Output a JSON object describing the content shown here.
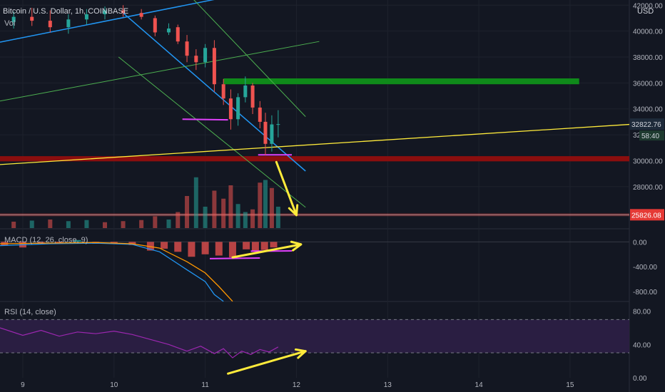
{
  "header": {
    "symbol": "Bitcoin / U.S. Dollar, 1h, COINBASE",
    "currency": "USD",
    "vol_label": "Vol"
  },
  "indicators": {
    "macd_label": "MACD (12, 26, close, 9)",
    "rsi_label": "RSI (14, close)"
  },
  "price_axis": {
    "ticks": [
      "42000.00",
      "40000.00",
      "38000.00",
      "36000.00",
      "34000.00",
      "32000.00",
      "30000.00",
      "28000.00"
    ],
    "current_price": "32822.76",
    "countdown": "58:40",
    "marker_price": "25826.08"
  },
  "macd_axis": {
    "ticks": [
      "0.00",
      "-400.00",
      "-800.00"
    ]
  },
  "rsi_axis": {
    "ticks": [
      "80.00",
      "40.00",
      "0.00"
    ]
  },
  "time_axis": {
    "labels": [
      "9",
      "10",
      "11",
      "12",
      "13",
      "14",
      "15"
    ]
  },
  "colors": {
    "background": "#131722",
    "bull": "#26a69a",
    "bear": "#ef5350",
    "channel_blue": "#2196f3",
    "channel_green": "#4caf50",
    "resistance_zone": "#0f8a1a",
    "support_zone": "#8b0e0e",
    "trendline_yellow": "#ffeb3b",
    "magenta": "#e040fb",
    "rsi_band": "#2a1e42",
    "rsi_line": "#9c27b0"
  },
  "chart_data": {
    "type": "candlestick",
    "symbol": "BTC/USD",
    "interval": "1h",
    "x_range_days": [
      8.75,
      15.65
    ],
    "price_range": [
      24800,
      42400
    ],
    "support_zone": [
      29950,
      30350
    ],
    "resistance_zone": [
      35900,
      36350
    ],
    "horizontal_line": 25826.08,
    "candles": [
      {
        "t": 8.9,
        "o": 40700,
        "h": 41500,
        "l": 40200,
        "c": 41100
      },
      {
        "t": 9.1,
        "o": 41100,
        "h": 41800,
        "l": 40400,
        "c": 40800
      },
      {
        "t": 9.3,
        "o": 40800,
        "h": 41600,
        "l": 39900,
        "c": 40300
      },
      {
        "t": 9.5,
        "o": 40300,
        "h": 41300,
        "l": 39800,
        "c": 40900
      },
      {
        "t": 9.7,
        "o": 40900,
        "h": 41700,
        "l": 40500,
        "c": 41300
      },
      {
        "t": 9.9,
        "o": 41300,
        "h": 41900,
        "l": 40900,
        "c": 41600
      },
      {
        "t": 10.1,
        "o": 41600,
        "h": 42000,
        "l": 41100,
        "c": 41400
      },
      {
        "t": 10.3,
        "o": 41400,
        "h": 41700,
        "l": 40900,
        "c": 41100
      },
      {
        "t": 10.45,
        "o": 41000,
        "h": 41200,
        "l": 39600,
        "c": 39900
      },
      {
        "t": 10.6,
        "o": 39900,
        "h": 40600,
        "l": 39700,
        "c": 40200
      },
      {
        "t": 10.7,
        "o": 40300,
        "h": 40500,
        "l": 39000,
        "c": 39200
      },
      {
        "t": 10.8,
        "o": 39200,
        "h": 39700,
        "l": 37600,
        "c": 38100
      },
      {
        "t": 10.9,
        "o": 38100,
        "h": 38600,
        "l": 37000,
        "c": 37600
      },
      {
        "t": 11.0,
        "o": 37600,
        "h": 39000,
        "l": 37200,
        "c": 38700
      },
      {
        "t": 11.1,
        "o": 38700,
        "h": 39300,
        "l": 35300,
        "c": 35900
      },
      {
        "t": 11.2,
        "o": 35900,
        "h": 36300,
        "l": 34300,
        "c": 34800
      },
      {
        "t": 11.28,
        "o": 34800,
        "h": 35500,
        "l": 32400,
        "c": 33200
      },
      {
        "t": 11.36,
        "o": 33200,
        "h": 35200,
        "l": 32700,
        "c": 34900
      },
      {
        "t": 11.44,
        "o": 34900,
        "h": 36500,
        "l": 34500,
        "c": 35800
      },
      {
        "t": 11.52,
        "o": 35800,
        "h": 36000,
        "l": 33600,
        "c": 34100
      },
      {
        "t": 11.6,
        "o": 34100,
        "h": 34600,
        "l": 32500,
        "c": 33000
      },
      {
        "t": 11.66,
        "o": 33000,
        "h": 33700,
        "l": 30400,
        "c": 31300
      },
      {
        "t": 11.73,
        "o": 31300,
        "h": 33500,
        "l": 30700,
        "c": 32800
      },
      {
        "t": 11.8,
        "o": 32800,
        "h": 33900,
        "l": 31800,
        "c": 32822.76
      }
    ],
    "volume_series": [
      {
        "t": 8.9,
        "v": 0.12,
        "up": false
      },
      {
        "t": 9.1,
        "v": 0.14,
        "up": true
      },
      {
        "t": 9.3,
        "v": 0.16,
        "up": false
      },
      {
        "t": 9.5,
        "v": 0.13,
        "up": true
      },
      {
        "t": 9.7,
        "v": 0.15,
        "up": true
      },
      {
        "t": 9.9,
        "v": 0.11,
        "up": false
      },
      {
        "t": 10.1,
        "v": 0.13,
        "up": false
      },
      {
        "t": 10.3,
        "v": 0.15,
        "up": false
      },
      {
        "t": 10.45,
        "v": 0.22,
        "up": false
      },
      {
        "t": 10.6,
        "v": 0.16,
        "up": true
      },
      {
        "t": 10.7,
        "v": 0.3,
        "up": false
      },
      {
        "t": 10.8,
        "v": 0.6,
        "up": false
      },
      {
        "t": 10.9,
        "v": 0.95,
        "up": true
      },
      {
        "t": 11.0,
        "v": 0.4,
        "up": true
      },
      {
        "t": 11.1,
        "v": 0.7,
        "up": false
      },
      {
        "t": 11.2,
        "v": 0.55,
        "up": false
      },
      {
        "t": 11.28,
        "v": 0.8,
        "up": false
      },
      {
        "t": 11.36,
        "v": 0.45,
        "up": true
      },
      {
        "t": 11.44,
        "v": 0.3,
        "up": true
      },
      {
        "t": 11.52,
        "v": 0.35,
        "up": false
      },
      {
        "t": 11.6,
        "v": 0.85,
        "up": false
      },
      {
        "t": 11.66,
        "v": 0.9,
        "up": true
      },
      {
        "t": 11.73,
        "v": 0.75,
        "up": false
      },
      {
        "t": 11.8,
        "v": 0.4,
        "up": true
      }
    ],
    "macd_range": [
      -950,
      200
    ],
    "macd_histogram": [
      {
        "t": 8.8,
        "v": -60
      },
      {
        "t": 9.0,
        "v": -90
      },
      {
        "t": 9.2,
        "v": -40
      },
      {
        "t": 9.4,
        "v": -20
      },
      {
        "t": 9.6,
        "v": 30
      },
      {
        "t": 9.8,
        "v": -30
      },
      {
        "t": 10.0,
        "v": -20
      },
      {
        "t": 10.2,
        "v": -50
      },
      {
        "t": 10.4,
        "v": -140
      },
      {
        "t": 10.55,
        "v": -110
      },
      {
        "t": 10.7,
        "v": -160
      },
      {
        "t": 10.85,
        "v": -240
      },
      {
        "t": 11.0,
        "v": -200
      },
      {
        "t": 11.15,
        "v": -220
      },
      {
        "t": 11.3,
        "v": -250
      },
      {
        "t": 11.45,
        "v": -120
      },
      {
        "t": 11.55,
        "v": -150
      },
      {
        "t": 11.65,
        "v": -130
      },
      {
        "t": 11.75,
        "v": -90
      }
    ],
    "macd_line": [
      [
        8.75,
        -60
      ],
      [
        9.3,
        -30
      ],
      [
        9.8,
        -20
      ],
      [
        10.2,
        -40
      ],
      [
        10.5,
        -160
      ],
      [
        10.8,
        -450
      ],
      [
        11.0,
        -640
      ],
      [
        11.1,
        -850
      ],
      [
        11.2,
        -960
      ]
    ],
    "signal_line": [
      [
        8.75,
        -30
      ],
      [
        9.3,
        -20
      ],
      [
        9.8,
        -10
      ],
      [
        10.2,
        -30
      ],
      [
        10.5,
        -100
      ],
      [
        10.8,
        -320
      ],
      [
        11.0,
        -500
      ],
      [
        11.15,
        -720
      ],
      [
        11.3,
        -960
      ]
    ],
    "rsi_range": [
      0,
      90
    ],
    "rsi_bands": [
      70,
      30
    ],
    "rsi_line": [
      [
        8.75,
        60
      ],
      [
        9.0,
        51
      ],
      [
        9.2,
        57
      ],
      [
        9.4,
        50
      ],
      [
        9.6,
        55
      ],
      [
        9.8,
        53
      ],
      [
        10.0,
        56
      ],
      [
        10.2,
        52
      ],
      [
        10.4,
        46
      ],
      [
        10.6,
        40
      ],
      [
        10.8,
        32
      ],
      [
        10.95,
        38
      ],
      [
        11.1,
        29
      ],
      [
        11.2,
        35
      ],
      [
        11.3,
        24
      ],
      [
        11.4,
        32
      ],
      [
        11.5,
        28
      ],
      [
        11.6,
        34
      ],
      [
        11.7,
        31
      ],
      [
        11.8,
        37
      ]
    ]
  }
}
